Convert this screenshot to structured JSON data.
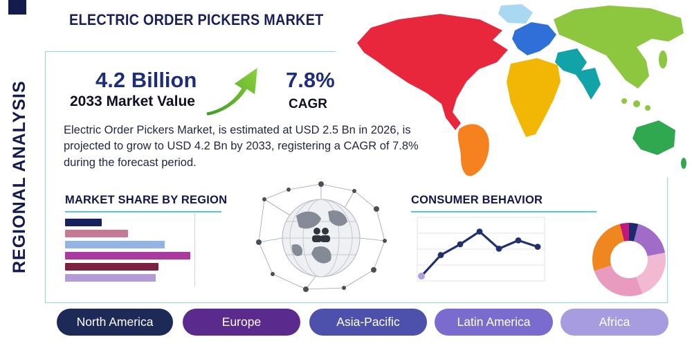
{
  "page": {
    "title": "ELECTRIC ORDER PICKERS MARKET",
    "side_label": "REGIONAL ANALYSIS"
  },
  "stats": {
    "market_value": "4.2 Billion",
    "market_value_caption": "2033 Market Value",
    "cagr_value": "7.8%",
    "cagr_caption": "CAGR"
  },
  "description": "Electric Order Pickers Market, is estimated at USD 2.5 Bn in 2026, is projected to grow to USD 4.2 Bn by 2033, registering a CAGR of 7.8% during the forecast period.",
  "sections": {
    "market_share_title": "MARKET SHARE BY REGION",
    "consumer_behavior_title": "CONSUMER BEHAVIOR"
  },
  "regions": [
    {
      "label": "North America",
      "color": "#1d2956"
    },
    {
      "label": "Europe",
      "color": "#5a2b8c"
    },
    {
      "label": "Asia-Pacific",
      "color": "#4d51ab"
    },
    {
      "label": "Latin America",
      "color": "#7a6bcf"
    },
    {
      "label": "Africa",
      "color": "#a79ce0"
    }
  ],
  "colors": {
    "accent_teal": "#54c7d6",
    "navy": "#141b4d",
    "arrow_green": "#63b32e",
    "map": {
      "north_america": "#e8273d",
      "greenland": "#a9d9f2",
      "south_america": "#f5821f",
      "europe": "#2e6fd8",
      "africa": "#f2b705",
      "middle_east_india": "#11a3a8",
      "asia": "#8dc63f",
      "australia": "#2fa84f"
    }
  },
  "chart_data": [
    {
      "type": "bar",
      "title": "MARKET SHARE BY REGION",
      "orientation": "horizontal",
      "categories": [
        "",
        "",
        "",
        "",
        "",
        ""
      ],
      "values": [
        28,
        48,
        76,
        95,
        71,
        69
      ],
      "colors": [
        "#16205c",
        "#c47a93",
        "#92b4e3",
        "#aa3a9f",
        "#7c2240",
        "#b49bd8"
      ],
      "xlim": [
        0,
        100
      ],
      "axis_labels_visible": false,
      "grid": false
    },
    {
      "type": "line",
      "title": "CONSUMER BEHAVIOR",
      "x": [
        1,
        2,
        3,
        4,
        5,
        6,
        7
      ],
      "values": [
        12,
        45,
        62,
        82,
        55,
        68,
        58
      ],
      "ylim": [
        0,
        100
      ],
      "line_color": "#20306e",
      "first_point_color": "#b39ddb",
      "grid": true,
      "legend": "none",
      "axis_labels_visible": false
    },
    {
      "type": "pie",
      "subtype": "donut",
      "title": "",
      "slices": [
        {
          "label": "",
          "color": "#1b2a6b",
          "value": 4
        },
        {
          "label": "",
          "color": "#a06cc8",
          "value": 18
        },
        {
          "label": "",
          "color": "#f2b9d3",
          "value": 22
        },
        {
          "label": "",
          "color": "#e89bbf",
          "value": 26
        },
        {
          "label": "",
          "color": "#f0861f",
          "value": 26
        },
        {
          "label": "",
          "color": "#c2187e",
          "value": 4
        }
      ]
    }
  ]
}
